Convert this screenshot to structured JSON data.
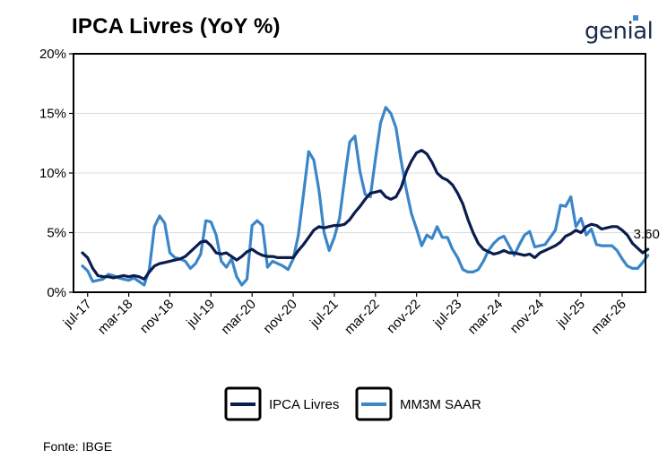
{
  "header": {
    "title": "IPCA Livres (YoY %)",
    "logo_text": "genial"
  },
  "source": "Fonte: IBGE",
  "annotation": "3.60",
  "colors": {
    "ipca": "#0b1d4f",
    "mm3m": "#3a86c8",
    "grid": "#dcdcdc"
  },
  "chart_data": {
    "type": "line",
    "title": "IPCA Livres (YoY %)",
    "xlabel": "",
    "ylabel": "",
    "x_start": "2017-06",
    "x_end": "2025-12",
    "ylim": [
      0,
      20
    ],
    "y_ticks": [
      0,
      5,
      10,
      15,
      20
    ],
    "y_tick_labels": [
      "0%",
      "5%",
      "10%",
      "15%",
      "20%"
    ],
    "x_ticks": [
      "2017-07",
      "2018-03",
      "2018-11",
      "2019-07",
      "2020-03",
      "2020-11",
      "2021-07",
      "2022-03",
      "2022-11",
      "2023-07",
      "2024-03",
      "2024-11",
      "2025-07",
      "2026-03"
    ],
    "x_tick_labels": [
      "jul-17",
      "mar-18",
      "nov-18",
      "jul-19",
      "mar-20",
      "nov-20",
      "jul-21",
      "mar-22",
      "nov-22",
      "jul-23",
      "mar-24",
      "nov-24",
      "jul-25",
      "mar-26"
    ],
    "grid": "horizontal",
    "legend": "bottom",
    "series": [
      {
        "name": "IPCA Livres",
        "color": "#0b1d4f",
        "values": [
          3.3,
          2.9,
          2.0,
          1.4,
          1.3,
          1.3,
          1.2,
          1.3,
          1.4,
          1.3,
          1.4,
          1.3,
          1.1,
          1.7,
          2.2,
          2.4,
          2.5,
          2.6,
          2.7,
          2.8,
          3.0,
          3.4,
          3.8,
          4.2,
          4.3,
          3.9,
          3.3,
          3.2,
          3.3,
          3.0,
          2.7,
          3.0,
          3.4,
          3.6,
          3.3,
          3.1,
          3.0,
          3.0,
          2.9,
          2.9,
          2.9,
          2.9,
          3.5,
          4.0,
          4.6,
          5.2,
          5.5,
          5.4,
          5.5,
          5.6,
          5.6,
          5.7,
          6.1,
          6.7,
          7.2,
          7.8,
          8.3,
          8.4,
          8.5,
          8.0,
          7.8,
          8.0,
          8.8,
          10.1,
          11.0,
          11.7,
          11.9,
          11.6,
          10.9,
          10.0,
          9.6,
          9.4,
          9.0,
          8.3,
          7.4,
          6.1,
          5.0,
          4.1,
          3.6,
          3.4,
          3.2,
          3.3,
          3.5,
          3.3,
          3.3,
          3.2,
          3.1,
          3.2,
          2.9,
          3.3,
          3.5,
          3.7,
          3.9,
          4.2,
          4.7,
          4.9,
          5.2,
          5.0,
          5.5,
          5.7,
          5.6,
          5.3,
          5.4,
          5.5,
          5.5,
          5.2,
          4.8,
          4.1,
          3.7,
          3.3,
          3.6
        ]
      },
      {
        "name": "MM3M SAAR",
        "color": "#3a86c8",
        "values": [
          2.2,
          1.8,
          0.9,
          1.0,
          1.1,
          1.5,
          1.4,
          1.2,
          1.1,
          1.0,
          1.2,
          0.9,
          0.6,
          1.9,
          5.5,
          6.4,
          5.8,
          3.3,
          2.9,
          2.8,
          2.6,
          2.0,
          2.4,
          3.2,
          6.0,
          5.9,
          4.8,
          2.6,
          2.1,
          2.8,
          1.3,
          0.6,
          1.1,
          5.6,
          6.0,
          5.6,
          2.1,
          2.6,
          2.4,
          2.2,
          1.9,
          2.8,
          4.8,
          8.2,
          11.8,
          11.1,
          8.6,
          5.0,
          3.5,
          4.6,
          6.2,
          9.5,
          12.6,
          13.1,
          10.1,
          8.2,
          8.0,
          11.2,
          14.2,
          15.5,
          15.0,
          13.8,
          11.0,
          8.6,
          6.6,
          5.3,
          3.9,
          4.8,
          4.5,
          5.5,
          4.6,
          4.6,
          3.6,
          2.9,
          1.9,
          1.7,
          1.7,
          1.9,
          2.6,
          3.5,
          4.1,
          4.5,
          4.7,
          3.9,
          3.1,
          4.0,
          4.8,
          5.1,
          3.8,
          3.9,
          4.0,
          4.6,
          5.2,
          7.3,
          7.2,
          8.0,
          5.5,
          6.2,
          4.8,
          5.3,
          4.0,
          3.9,
          3.9,
          3.9,
          3.5,
          2.8,
          2.2,
          2.0,
          2.0,
          2.5,
          3.1
        ]
      }
    ]
  }
}
